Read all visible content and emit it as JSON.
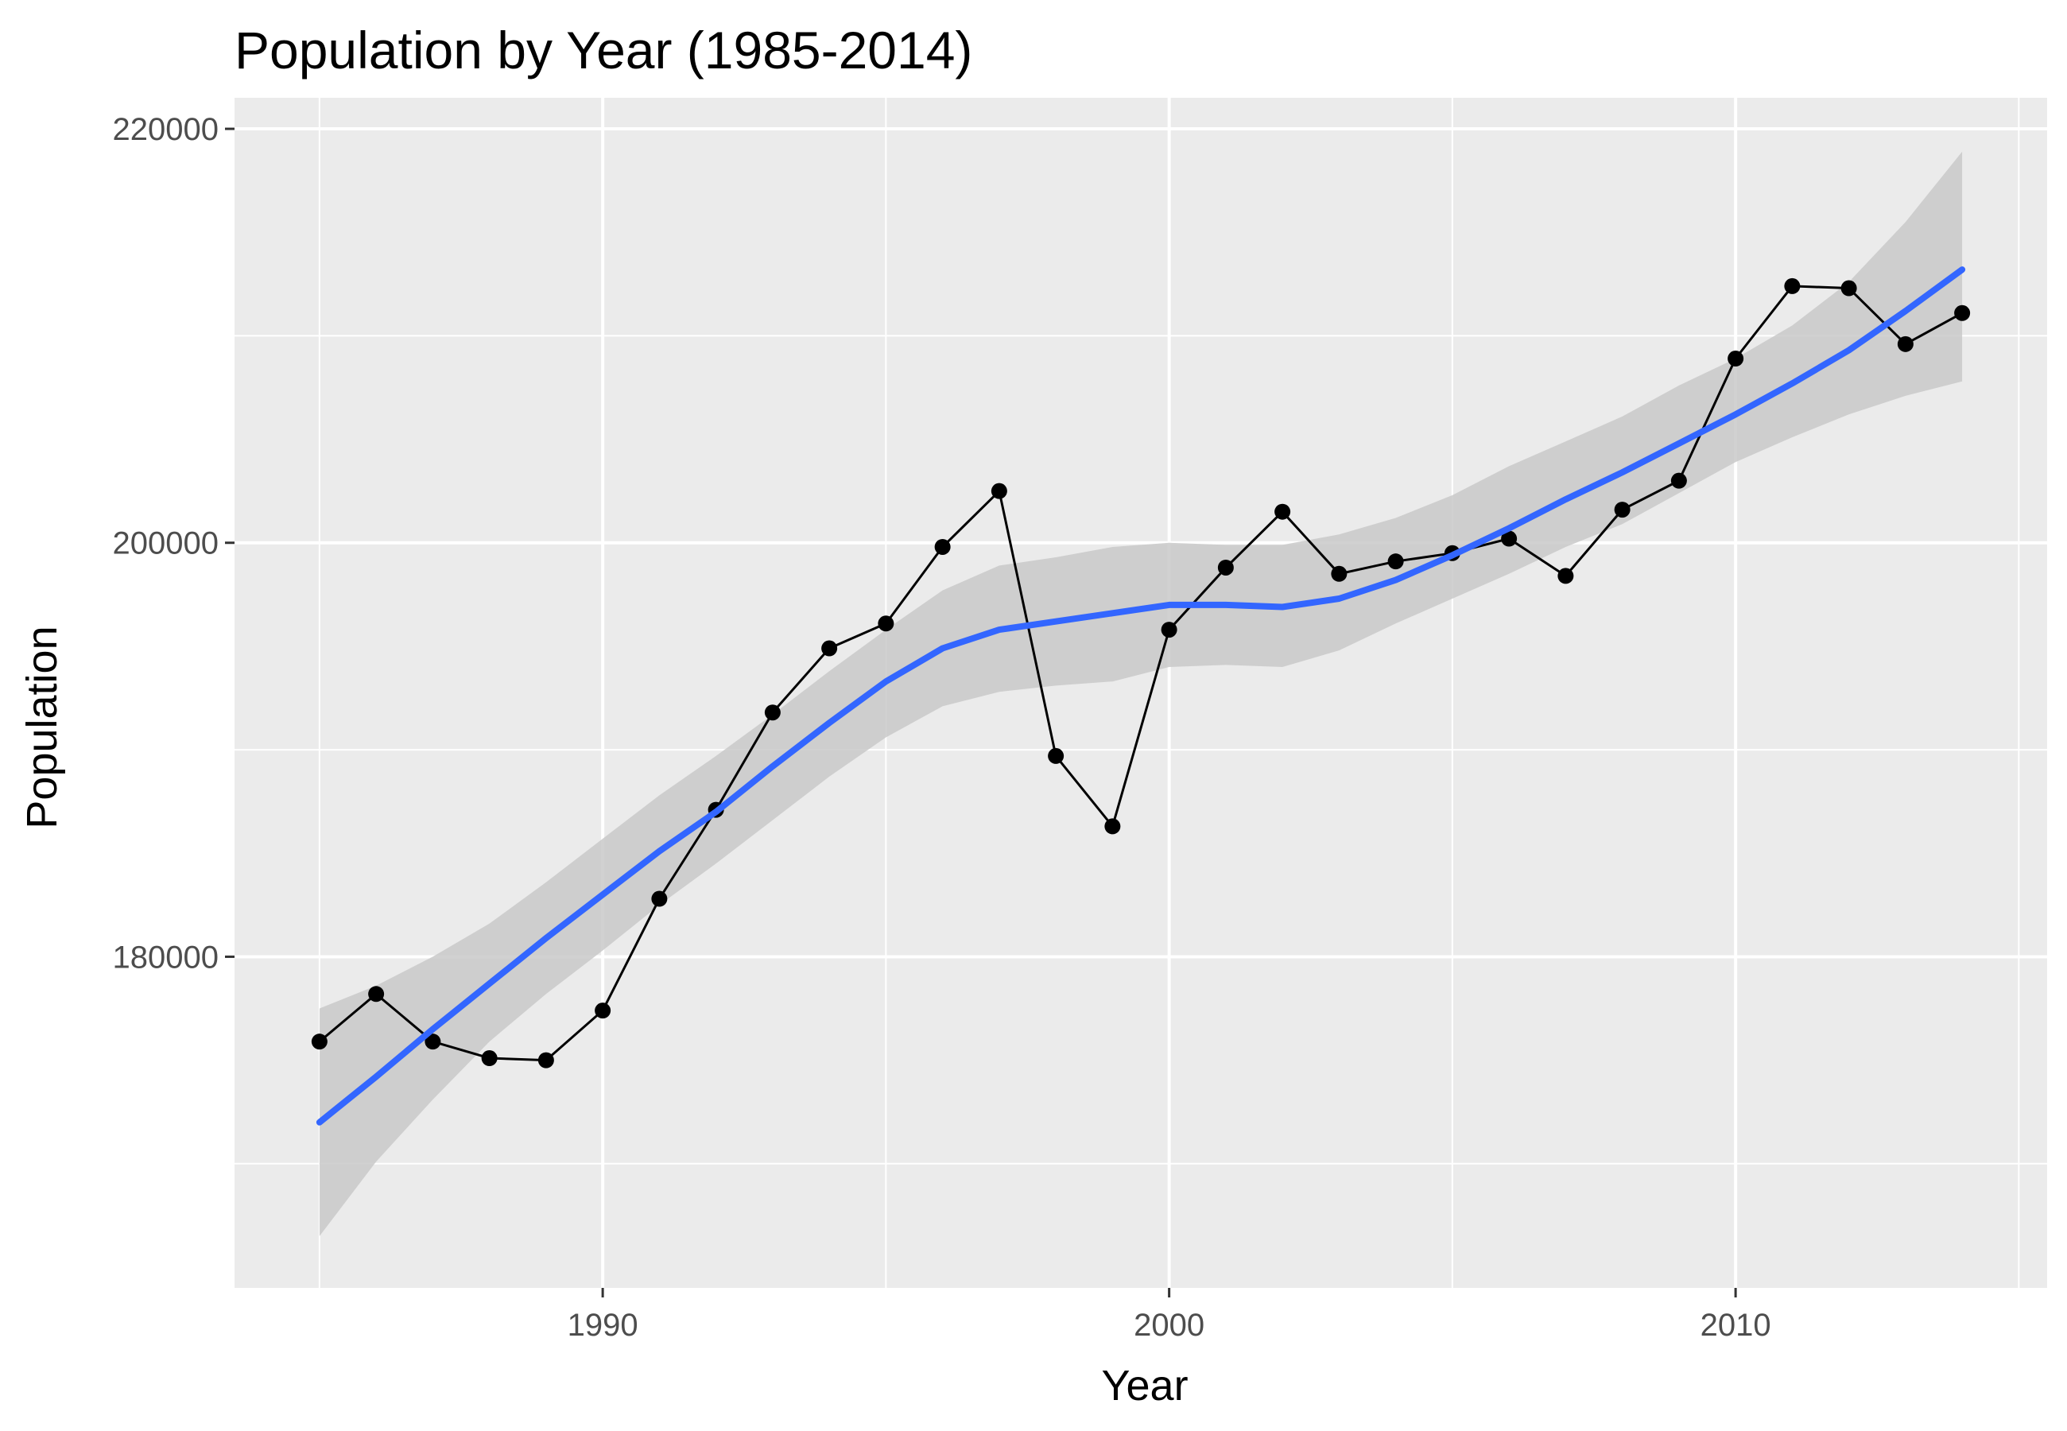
{
  "chart_data": {
    "type": "line",
    "title": "Population by Year (1985-2014)",
    "xlabel": "Year",
    "ylabel": "Population",
    "xlim": [
      1983.5,
      2015.5
    ],
    "ylim": [
      164000,
      221500
    ],
    "x_ticks": [
      1990,
      2000,
      2010
    ],
    "y_ticks": [
      180000,
      200000,
      220000
    ],
    "grid": true,
    "legend": "none",
    "colors": {
      "panel": "#ebebeb",
      "grid": "#ffffff",
      "points": "#000000",
      "line": "#000000",
      "smooth": "#3366ff",
      "ribbon": "#c9c9c9"
    },
    "series": [
      {
        "x": [
          1985,
          1986,
          1987,
          1988,
          1989,
          1990,
          1991,
          1992,
          1993,
          1994,
          1995,
          1996,
          1997,
          1998,
          1999,
          2000,
          2001,
          2002,
          2003,
          2004,
          2005,
          2006,
          2007,
          2008,
          2009,
          2010,
          2011,
          2012,
          2013,
          2014
        ],
        "values": [
          175900,
          178200,
          175900,
          175100,
          175000,
          177400,
          182800,
          187100,
          191800,
          194900,
          196100,
          199800,
          202500,
          189700,
          186300,
          195800,
          198800,
          201500,
          198500,
          199100,
          199500,
          200200,
          198400,
          201600,
          203000,
          208900,
          212400,
          212300,
          209600,
          211100
        ]
      }
    ],
    "smooth": {
      "x": [
        1985,
        1986,
        1987,
        1988,
        1989,
        1990,
        1991,
        1992,
        1993,
        1994,
        1995,
        1996,
        1997,
        1998,
        1999,
        2000,
        2001,
        2002,
        2003,
        2004,
        2005,
        2006,
        2007,
        2008,
        2009,
        2010,
        2011,
        2012,
        2013,
        2014
      ],
      "fit": [
        172000,
        174200,
        176500,
        178700,
        180900,
        183000,
        185100,
        187000,
        189200,
        191300,
        193300,
        194900,
        195800,
        196200,
        196600,
        197000,
        197000,
        196900,
        197300,
        198200,
        199400,
        200700,
        202100,
        203400,
        204800,
        206200,
        207700,
        209300,
        211200,
        213200
      ],
      "lower": [
        166500,
        170100,
        173100,
        175900,
        178200,
        180300,
        182500,
        184500,
        186600,
        188700,
        190600,
        192100,
        192800,
        193100,
        193300,
        194000,
        194100,
        194000,
        194800,
        196100,
        197300,
        198500,
        199800,
        200900,
        202400,
        203900,
        205100,
        206200,
        207100,
        207800
      ],
      "upper": [
        177500,
        178600,
        180000,
        181600,
        183600,
        185700,
        187800,
        189700,
        191700,
        193800,
        195800,
        197700,
        198900,
        199300,
        199800,
        200000,
        199900,
        199900,
        200400,
        201200,
        202300,
        203700,
        204900,
        206100,
        207600,
        208900,
        210500,
        212600,
        215500,
        218900
      ]
    }
  }
}
